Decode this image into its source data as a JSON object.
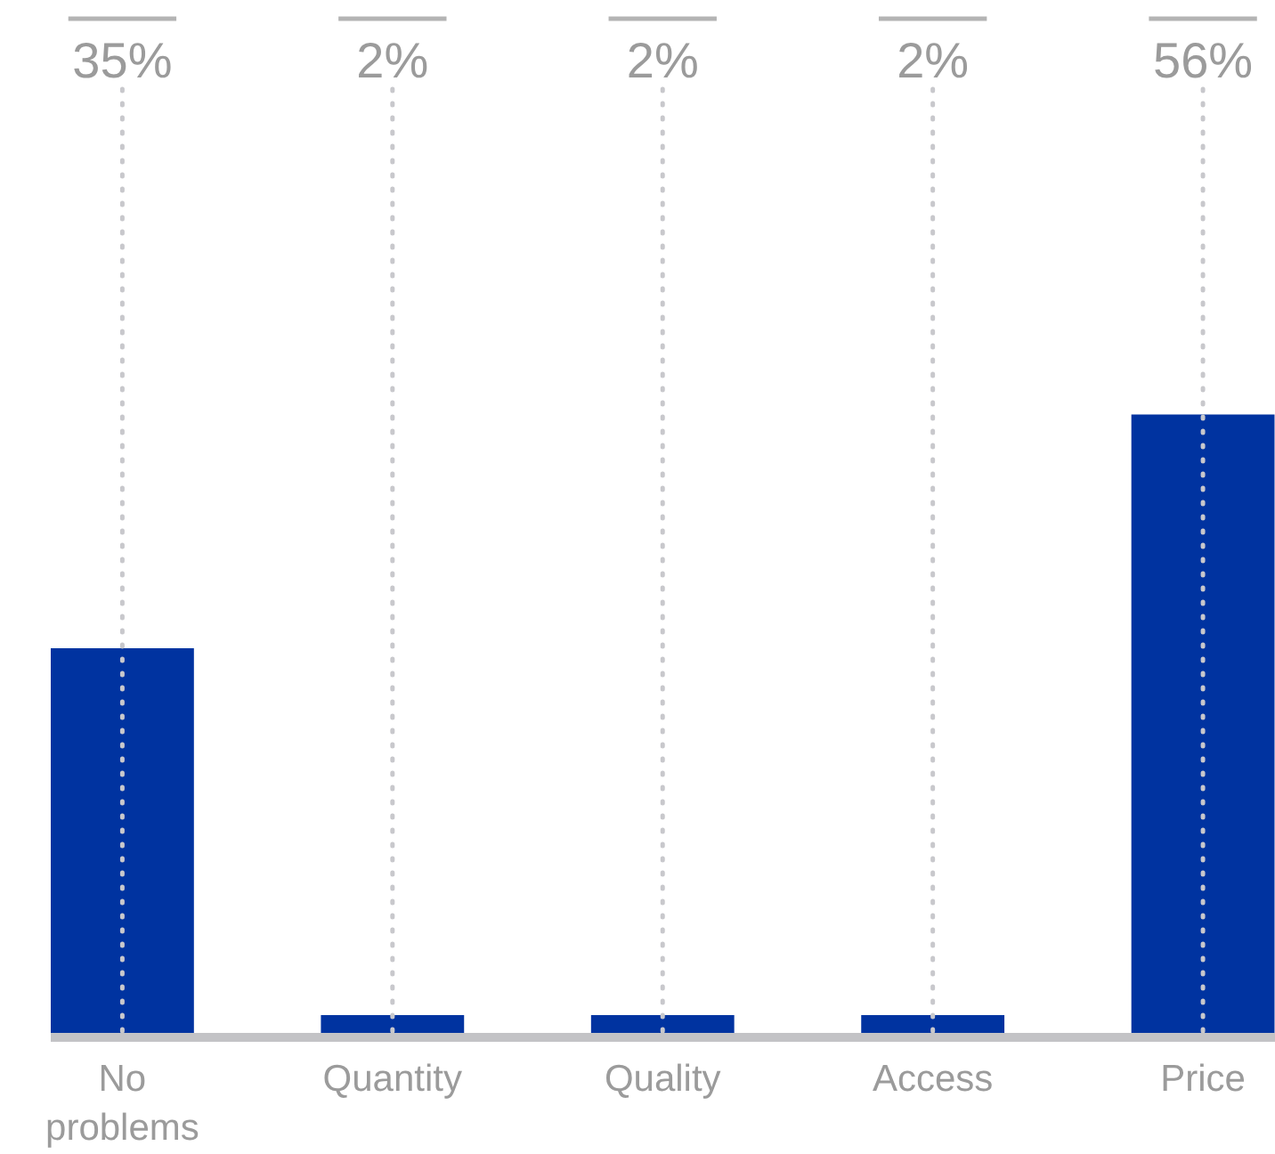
{
  "chart_data": {
    "type": "bar",
    "categories": [
      "No problems",
      "Quantity",
      "Quality",
      "Access",
      "Price"
    ],
    "values": [
      35,
      2,
      2,
      2,
      56
    ],
    "value_labels": [
      "35%",
      "2%",
      "2%",
      "2%",
      "56%"
    ],
    "color": "#0033a0",
    "grid": "x",
    "tick_labels": "x"
  }
}
